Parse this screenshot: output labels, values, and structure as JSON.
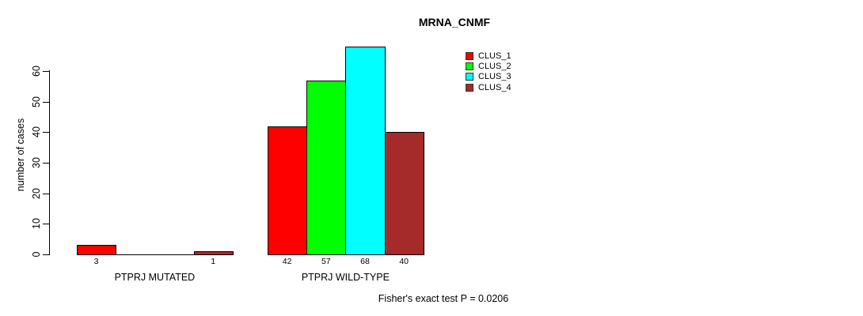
{
  "chart_data": {
    "type": "bar",
    "title": "MRNA_CNMF",
    "ylabel": "number of cases",
    "xlabel": "",
    "ylim": [
      0,
      68
    ],
    "yticks": [
      0,
      10,
      20,
      30,
      40,
      50,
      60
    ],
    "grid": false,
    "legend_position": "top-right",
    "legend": [
      {
        "name": "CLUS_1",
        "color": "#ff0000"
      },
      {
        "name": "CLUS_2",
        "color": "#00ff00"
      },
      {
        "name": "CLUS_3",
        "color": "#00ffff"
      },
      {
        "name": "CLUS_4",
        "color": "#a52a2a"
      }
    ],
    "groups": [
      {
        "label": "PTPRJ MUTATED",
        "values": [
          3,
          0,
          0,
          1
        ],
        "value_labels": [
          "3",
          "",
          "",
          "1"
        ]
      },
      {
        "label": "PTPRJ WILD-TYPE",
        "values": [
          42,
          57,
          68,
          40
        ],
        "value_labels": [
          "42",
          "57",
          "68",
          "40"
        ]
      }
    ],
    "footnote": "Fisher's exact test P = 0.0206"
  }
}
